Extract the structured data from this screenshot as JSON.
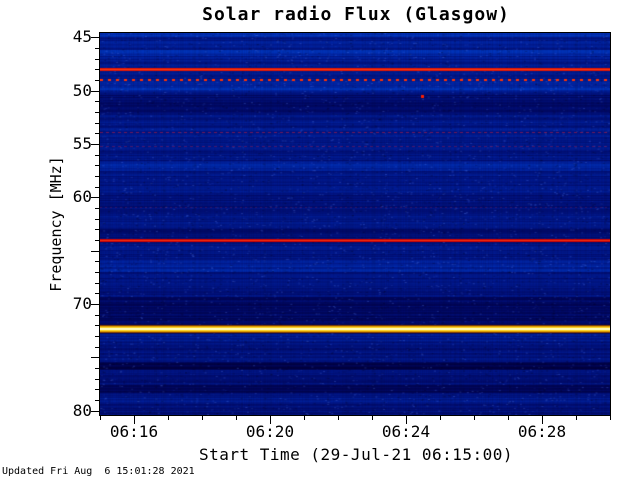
{
  "footer": {
    "updated": "Updated Fri Aug  6 15:01:28 2021"
  },
  "chart_data": {
    "type": "heatmap",
    "title": "Solar radio Flux (Glasgow)",
    "xlabel": "Start Time (29-Jul-21 06:15:00)",
    "ylabel": "Frequency [MHz]",
    "legend": "none",
    "grid": false,
    "y_axis": {
      "min": 44.6,
      "max": 80.4,
      "units": "MHz",
      "direction": "inverted (45 top, 80 bottom)",
      "labeled_ticks": [
        {
          "f": 45,
          "label": "45"
        },
        {
          "f": 50,
          "label": "50"
        },
        {
          "f": 55,
          "label": "55"
        },
        {
          "f": 60,
          "label": "60"
        },
        {
          "f": 70,
          "label": "70"
        },
        {
          "f": 80,
          "label": "80"
        }
      ],
      "major_step": 5,
      "minor_step": 1
    },
    "x_axis": {
      "start_time": "06:15:00",
      "minutes_span": 15,
      "labeled_ticks": [
        {
          "m": 1,
          "label": "06:16"
        },
        {
          "m": 5,
          "label": "06:20"
        },
        {
          "m": 9,
          "label": "06:24"
        },
        {
          "m": 13,
          "label": "06:28"
        }
      ],
      "minor_step_minutes": 1
    },
    "palette": {
      "background_blue": "#0000aa",
      "dark_band_blue": "#000033",
      "rfi_red": "#dd0000",
      "strong_band_yellow": "#ffd21e",
      "band_core_white": "#ffffc8"
    },
    "profile": [
      [
        44.6,
        45.0,
        0.7
      ],
      [
        45.0,
        46.2,
        0.5
      ],
      [
        46.2,
        46.8,
        0.62
      ],
      [
        46.8,
        47.7,
        0.5
      ],
      [
        47.7,
        48.4,
        0.45
      ],
      [
        48.4,
        49.2,
        0.5
      ],
      [
        49.2,
        50.0,
        0.62
      ],
      [
        50.0,
        50.4,
        0.45
      ],
      [
        50.4,
        52.3,
        0.33
      ],
      [
        52.3,
        53.4,
        0.45
      ],
      [
        53.4,
        55.6,
        0.48
      ],
      [
        55.6,
        56.6,
        0.42
      ],
      [
        56.6,
        57.5,
        0.55
      ],
      [
        57.5,
        59.5,
        0.45
      ],
      [
        59.5,
        61.0,
        0.4
      ],
      [
        61.0,
        63.0,
        0.44
      ],
      [
        63.0,
        64.4,
        0.36
      ],
      [
        64.4,
        66.0,
        0.45
      ],
      [
        66.0,
        67.0,
        0.55
      ],
      [
        67.0,
        69.3,
        0.42
      ],
      [
        69.3,
        71.8,
        0.28
      ],
      [
        71.8,
        72.8,
        0.3
      ],
      [
        72.8,
        73.6,
        0.5
      ],
      [
        73.6,
        75.4,
        0.4
      ],
      [
        75.4,
        76.2,
        0.18
      ],
      [
        76.2,
        77.6,
        0.4
      ],
      [
        77.6,
        78.3,
        0.22
      ],
      [
        78.3,
        79.3,
        0.45
      ],
      [
        79.3,
        80.4,
        0.38
      ]
    ],
    "solid_lines": [
      {
        "freq": 47.95,
        "height": 3,
        "color": "#e81500",
        "note": "strong RFI line"
      },
      {
        "freq": 64.0,
        "height": 3,
        "color": "#d40000",
        "note": "strong RFI line"
      }
    ],
    "dotted_lines": [
      {
        "freq": 48.9,
        "color": "#ff3300",
        "alpha": 1.0,
        "period": 8,
        "dash": 3,
        "height": 2
      },
      {
        "freq": 53.9,
        "color": "#c81e3c",
        "alpha": 0.55,
        "period": 6,
        "dash": 3,
        "height": 1
      },
      {
        "freq": 55.2,
        "color": "#b41e50",
        "alpha": 0.4,
        "period": 6,
        "dash": 3,
        "height": 1
      },
      {
        "freq": 60.9,
        "color": "#a01e50",
        "alpha": 0.3,
        "period": 5,
        "dash": 2,
        "height": 1
      }
    ],
    "yellow_band": {
      "freq": 72.3,
      "note": "very strong narrowband emission",
      "layers": [
        [
          8,
          "#803c00"
        ],
        [
          6,
          "#e0a000"
        ],
        [
          4,
          "#ffd21e"
        ],
        [
          2,
          "#ffffc8"
        ]
      ]
    },
    "events": [
      {
        "t": 0.63,
        "freq": 50.55,
        "color": "#ff1e00",
        "w": 3,
        "h": 3,
        "note": "isolated red point near 06:24"
      }
    ]
  }
}
